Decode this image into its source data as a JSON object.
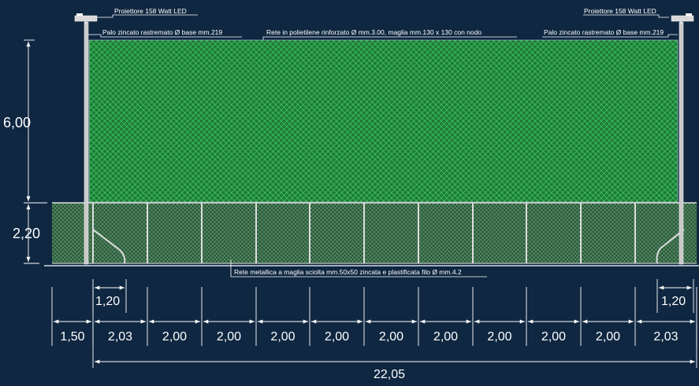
{
  "colors": {
    "background": "#0f2741",
    "upper_net": "#1f7a38",
    "upper_net_mesh": "#3fcf63",
    "lower_net": "#2a5a3a",
    "lower_net_mesh": "#6fa27c",
    "lines": "#ffffff",
    "pole": "#c8c8c8"
  },
  "labels": {
    "projector_left": "Proiettore 158 Watt LED",
    "projector_right": "Proiettore 158 Watt LED",
    "pole_left": "Palo zincato rastremato Ø base mm.219",
    "pole_right": "Palo zincato rastremato Ø base mm.219",
    "upper_net": "Rete in polietilene rinforzato Ø mm.3.00, maglia mm.130 x 130 con nodo",
    "lower_net": "Rete metallica a maglia sciolta mm.50x50 zincata e plastificata filo Ø mm.4.2"
  },
  "dimensions": {
    "height_upper": "6,00",
    "height_lower": "2,20",
    "pole_offset_left": "1,20",
    "pole_offset_right": "1,20",
    "total": "22,05",
    "spans": [
      "1,50",
      "2,03",
      "2,00",
      "2,00",
      "2,00",
      "2,00",
      "2,00",
      "2,00",
      "2,00",
      "2,00",
      "2,00",
      "2,03"
    ]
  }
}
